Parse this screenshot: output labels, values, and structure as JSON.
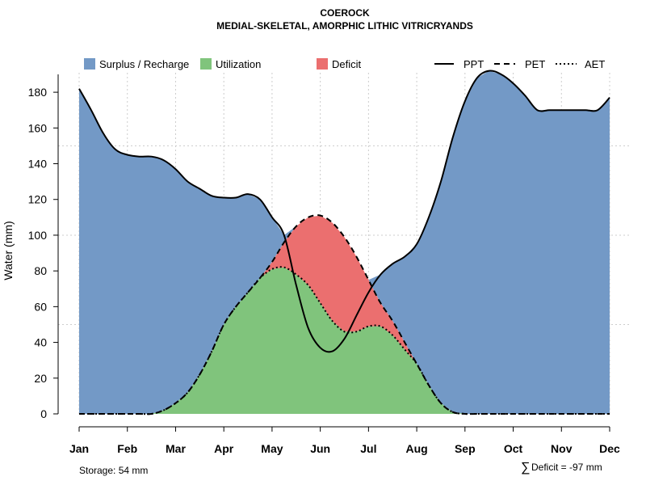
{
  "chart_data": {
    "type": "area",
    "title": "COEROCK",
    "subtitle": "MEDIAL-SKELETAL, AMORPHIC LITHIC VITRICRYANDS",
    "xlabel": "",
    "ylabel": "Water (mm)",
    "categories": [
      "Jan",
      "Feb",
      "Mar",
      "Apr",
      "May",
      "Jun",
      "Jul",
      "Aug",
      "Sep",
      "Oct",
      "Nov",
      "Dec"
    ],
    "ylim": [
      0,
      190
    ],
    "yticks": [
      0,
      20,
      40,
      60,
      80,
      100,
      120,
      140,
      160,
      180
    ],
    "x": [
      1,
      1.25,
      1.5,
      1.75,
      2,
      2.25,
      2.5,
      2.75,
      3,
      3.25,
      3.5,
      3.75,
      4,
      4.25,
      4.5,
      4.75,
      5,
      5.25,
      5.5,
      5.75,
      6,
      6.25,
      6.5,
      6.75,
      7,
      7.25,
      7.5,
      7.75,
      8,
      8.25,
      8.5,
      8.75,
      9,
      9.25,
      9.5,
      9.75,
      10,
      10.25,
      10.5,
      10.75,
      11,
      11.25,
      11.5,
      11.75,
      12
    ],
    "series": [
      {
        "name": "PPT",
        "style": "solid",
        "values": [
          182,
          170,
          157,
          148,
          145,
          144,
          144,
          142,
          137,
          130,
          126,
          122,
          121,
          121,
          123,
          120,
          110,
          100,
          72,
          48,
          37,
          35,
          42,
          55,
          68,
          78,
          84,
          88,
          95,
          110,
          130,
          155,
          175,
          188,
          192,
          190,
          185,
          178,
          170,
          170,
          170,
          170,
          170,
          170,
          177
        ]
      },
      {
        "name": "PET",
        "style": "dashed",
        "values": [
          0,
          0,
          0,
          0,
          0,
          0,
          0,
          2,
          6,
          12,
          22,
          35,
          50,
          60,
          68,
          76,
          85,
          96,
          105,
          110,
          111,
          107,
          99,
          88,
          75,
          62,
          52,
          40,
          28,
          16,
          6,
          1,
          0,
          0,
          0,
          0,
          0,
          0,
          0,
          0,
          0,
          0,
          0,
          0,
          0
        ]
      },
      {
        "name": "AET",
        "style": "dotted",
        "values": [
          0,
          0,
          0,
          0,
          0,
          0,
          0,
          2,
          6,
          12,
          22,
          35,
          50,
          60,
          68,
          76,
          81,
          82,
          78,
          72,
          62,
          52,
          46,
          46,
          49,
          49,
          44,
          36,
          28,
          16,
          6,
          1,
          0,
          0,
          0,
          0,
          0,
          0,
          0,
          0,
          0,
          0,
          0,
          0,
          0
        ]
      }
    ],
    "areas": [
      {
        "name": "Surplus / Recharge",
        "color": "#7399c6"
      },
      {
        "name": "Utilization",
        "color": "#80c47c"
      },
      {
        "name": "Deficit",
        "color": "#eb6f6f"
      }
    ],
    "line_color": "#000000",
    "grid": true,
    "legend_position": "top",
    "annotations": {
      "storage": "Storage: 54 mm",
      "deficit_symbol": "∑",
      "deficit": "Deficit = -97 mm"
    }
  }
}
